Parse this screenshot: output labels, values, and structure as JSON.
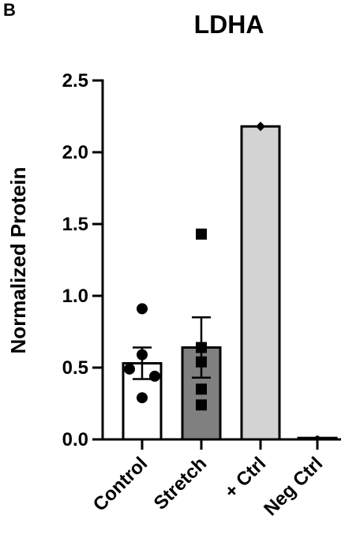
{
  "chart_data": {
    "type": "bar",
    "panel_label": "B",
    "title": "LDHA",
    "ylabel": "Normalized Protein",
    "categories": [
      "Control",
      "Stretch",
      "+ Ctrl",
      "Neg Ctrl"
    ],
    "values": [
      0.53,
      0.64,
      2.18,
      0.01
    ],
    "errors": [
      0.11,
      0.21,
      0,
      0
    ],
    "colors": [
      "#ffffff",
      "#808080",
      "#d3d3d3",
      "#ffffff"
    ],
    "markers": [
      "circle",
      "square",
      "diamond",
      "circle"
    ],
    "points": [
      [
        0.91,
        0.59,
        0.49,
        0.44,
        0.29
      ],
      [
        1.43,
        0.64,
        0.54,
        0.35,
        0.24
      ],
      [
        2.18
      ],
      [
        0.01
      ]
    ],
    "ylim": [
      0,
      2.5
    ],
    "yticks": [
      {
        "value": 0,
        "label": "0.0"
      },
      {
        "value": 0.5,
        "label": "0.5"
      },
      {
        "value": 1,
        "label": "1.0"
      },
      {
        "value": 1.5,
        "label": "1.5"
      },
      {
        "value": 2,
        "label": "2.0"
      },
      {
        "value": 2.5,
        "label": "2.5"
      }
    ]
  }
}
